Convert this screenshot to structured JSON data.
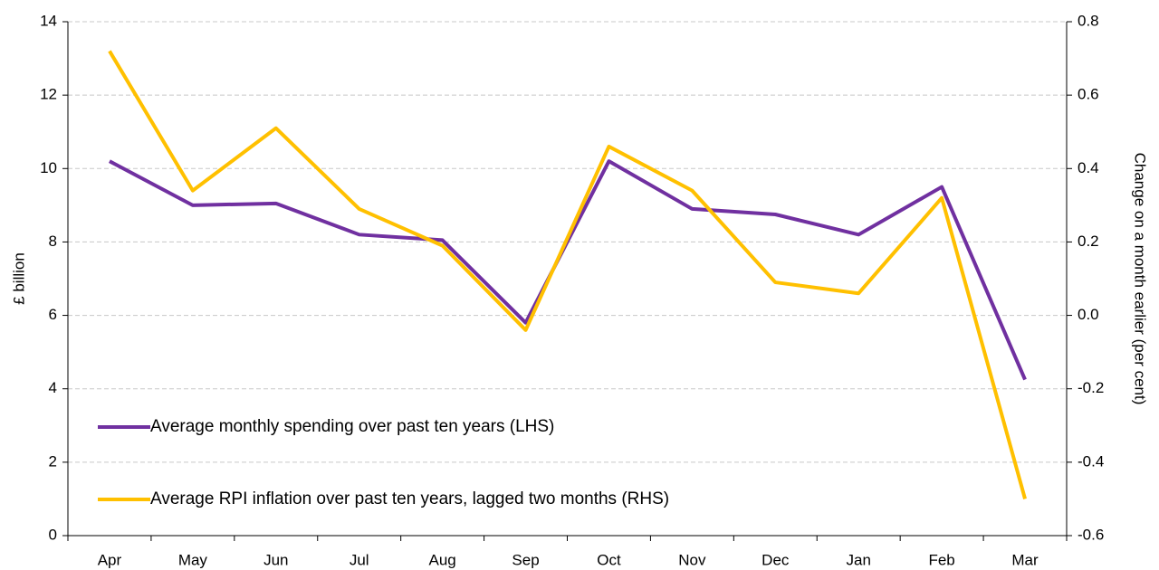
{
  "chart_data": {
    "type": "line",
    "y_label": "£ billion",
    "y2_label": "Change on a month earlier (per cent)",
    "categories": [
      "Apr",
      "May",
      "Jun",
      "Jul",
      "Aug",
      "Sep",
      "Oct",
      "Nov",
      "Dec",
      "Jan",
      "Feb",
      "Mar"
    ],
    "series": [
      {
        "name": "Average monthly spending over past ten years (LHS)",
        "color": "#7030a0",
        "values": [
          10.2,
          9.0,
          9.05,
          8.2,
          8.05,
          5.8,
          10.2,
          8.9,
          8.75,
          8.2,
          9.5,
          4.25
        ]
      },
      {
        "name": "Average RPI inflation over past ten years, lagged two months (RHS)",
        "color": "#ffc000",
        "axis": "y2",
        "values": [
          0.72,
          0.34,
          0.51,
          0.29,
          0.19,
          -0.04,
          0.46,
          0.34,
          0.09,
          0.06,
          0.32,
          -0.5
        ]
      }
    ],
    "ylim": [
      0,
      14
    ],
    "yticks": [
      0,
      2,
      4,
      6,
      8,
      10,
      12,
      14
    ],
    "y2lim": [
      -0.6,
      0.8
    ],
    "y2ticks": [
      -0.6,
      -0.4,
      -0.2,
      {
        "value": 0,
        "label": "0.0"
      },
      0.2,
      0.4,
      0.6,
      0.8
    ],
    "grid": true,
    "legend": "lower left"
  }
}
